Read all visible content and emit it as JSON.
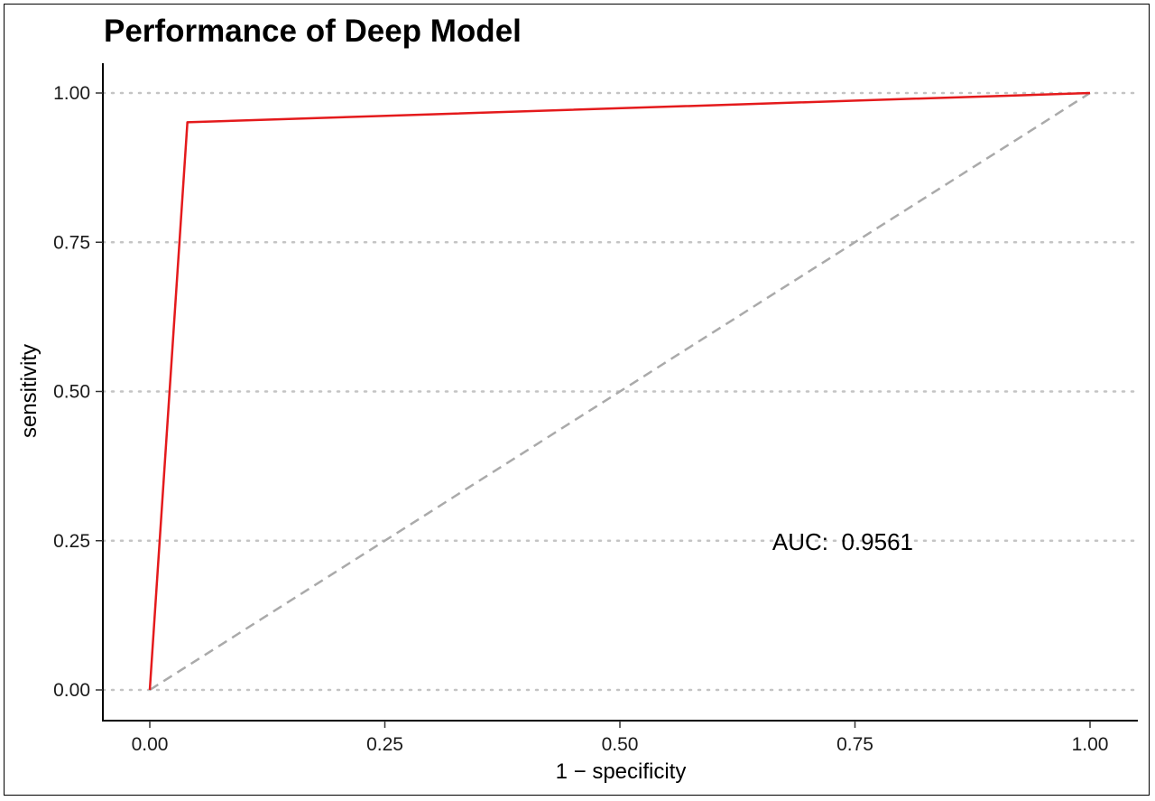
{
  "chart_data": {
    "type": "line",
    "title": "Performance of Deep Model",
    "xlabel": "1 − specificity",
    "ylabel": "sensitivity",
    "xlim": [
      0,
      1
    ],
    "ylim": [
      0,
      1
    ],
    "x_ticks": [
      "0.00",
      "0.25",
      "0.50",
      "0.75",
      "1.00"
    ],
    "y_ticks": [
      "0.00",
      "0.25",
      "0.50",
      "0.75",
      "1.00"
    ],
    "x_tick_values": [
      0,
      0.25,
      0.5,
      0.75,
      1
    ],
    "y_tick_values": [
      0,
      0.25,
      0.5,
      0.75,
      1
    ],
    "grid": "horizontal dotted",
    "series": [
      {
        "color": "#e41a1c",
        "line_style": "solid",
        "x": [
          0,
          0.04,
          1
        ],
        "y": [
          0,
          0.951,
          1
        ]
      },
      {
        "color": "#aaaaaa",
        "line_style": "dashed",
        "x": [
          0,
          1
        ],
        "y": [
          0,
          1
        ]
      }
    ],
    "annotations": [
      {
        "text": "AUC:  0.9561",
        "x": 0.76,
        "y": 0.25
      }
    ]
  }
}
